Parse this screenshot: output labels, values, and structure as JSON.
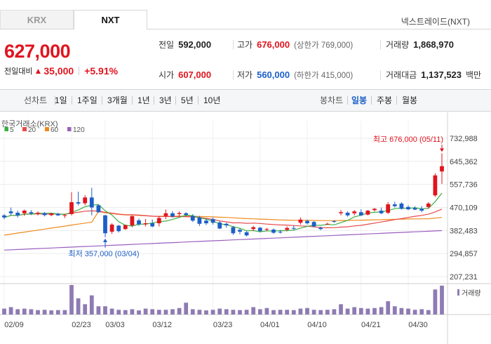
{
  "tabs": [
    {
      "label": "KRX",
      "active": false
    },
    {
      "label": "NXT",
      "active": true
    }
  ],
  "market_name": "넥스트레이드(NXT)",
  "price": "627,000",
  "change": {
    "label": "전일대비",
    "amount": "35,000",
    "percent": "+5.91%"
  },
  "stats": {
    "prev_close": {
      "label": "전일",
      "value": "592,000"
    },
    "high": {
      "label": "고가",
      "value": "676,000",
      "sub": "(상한가 769,000)"
    },
    "volume": {
      "label": "거래량",
      "value": "1,868,970"
    },
    "open": {
      "label": "시가",
      "value": "607,000"
    },
    "low": {
      "label": "저가",
      "value": "560,000",
      "sub": "(하한가 415,000)"
    },
    "amount": {
      "label": "거래대금",
      "value": "1,137,523",
      "unit": "백만"
    }
  },
  "toolbar": {
    "line_label": "선차트",
    "line_periods": [
      "1일",
      "1주일",
      "3개월",
      "1년",
      "3년",
      "5년",
      "10년"
    ],
    "candle_label": "봉차트",
    "candle_periods": [
      "일봉",
      "주봉",
      "월봉"
    ],
    "candle_active": "일봉"
  },
  "colors": {
    "up": "#e0141e",
    "down": "#1c5fc8",
    "ma5": "#3cb043",
    "ma20": "#e84a4a",
    "ma60": "#f08a1c",
    "ma120": "#9b5fc0",
    "volume": "#8e7bb3"
  },
  "chart_data": {
    "type": "candlestick",
    "source_label": "한국거래소(KRX)",
    "legend": [
      "5",
      "20",
      "60",
      "120"
    ],
    "y_ticks": [
      "732,988",
      "645,362",
      "557,736",
      "470,109",
      "382,483",
      "294,857",
      "207,231"
    ],
    "y_tick_values": [
      732988,
      645362,
      557736,
      470109,
      382483,
      294857,
      207231
    ],
    "x_ticks": [
      {
        "label": "02/09",
        "index": 0
      },
      {
        "label": "02/23",
        "index": 10
      },
      {
        "label": "03/03",
        "index": 15
      },
      {
        "label": "03/12",
        "index": 22
      },
      {
        "label": "03/23",
        "index": 31
      },
      {
        "label": "04/01",
        "index": 38
      },
      {
        "label": "04/10",
        "index": 45
      },
      {
        "label": "04/21",
        "index": 53
      },
      {
        "label": "04/30",
        "index": 60
      }
    ],
    "high_annotation": "최고 676,000 (05/11)",
    "low_annotation": "최저 357,000 (03/04)",
    "volume_label": "거래량",
    "candles": [
      [
        440000,
        445000,
        425000,
        432000
      ],
      [
        455000,
        470000,
        440000,
        448000
      ],
      [
        450000,
        458000,
        432000,
        440000
      ],
      [
        448000,
        462000,
        438000,
        458000
      ],
      [
        452000,
        460000,
        441000,
        447000
      ],
      [
        447000,
        455000,
        440000,
        450000
      ],
      [
        449000,
        453000,
        436000,
        441000
      ],
      [
        441000,
        450000,
        437000,
        447000
      ],
      [
        446000,
        450000,
        438000,
        440000
      ],
      [
        441000,
        446000,
        430000,
        441000
      ],
      [
        445000,
        528000,
        440000,
        490000
      ],
      [
        490000,
        530000,
        478000,
        485000
      ],
      [
        486000,
        517000,
        478000,
        508000
      ],
      [
        508000,
        545000,
        440000,
        470000
      ],
      [
        478000,
        480000,
        450000,
        452000
      ],
      [
        440000,
        442000,
        357000,
        372000
      ],
      [
        378000,
        410000,
        370000,
        405000
      ],
      [
        401000,
        404000,
        375000,
        380000
      ],
      [
        388000,
        405000,
        385000,
        403000
      ],
      [
        402000,
        440000,
        395000,
        437000
      ],
      [
        421000,
        428000,
        400000,
        406000
      ],
      [
        406000,
        426000,
        398000,
        410000
      ],
      [
        410000,
        424000,
        395000,
        398000
      ],
      [
        410000,
        436000,
        398000,
        430000
      ],
      [
        438000,
        462000,
        426000,
        448000
      ],
      [
        448000,
        456000,
        431000,
        436000
      ],
      [
        445000,
        455000,
        435000,
        449000
      ],
      [
        448000,
        452000,
        436000,
        442000
      ],
      [
        438000,
        445000,
        415000,
        420000
      ],
      [
        432000,
        438000,
        400000,
        408000
      ],
      [
        420000,
        428000,
        403000,
        410000
      ],
      [
        426000,
        432000,
        405000,
        412000
      ],
      [
        413000,
        418000,
        388000,
        390000
      ],
      [
        408000,
        412000,
        393000,
        402000
      ],
      [
        395000,
        400000,
        366000,
        372000
      ],
      [
        385000,
        392000,
        368000,
        378000
      ],
      [
        376000,
        380000,
        360000,
        364000
      ],
      [
        388000,
        400000,
        380000,
        395000
      ],
      [
        393000,
        396000,
        376000,
        380000
      ],
      [
        386000,
        392000,
        380000,
        388000
      ],
      [
        386000,
        390000,
        370000,
        374000
      ],
      [
        378000,
        384000,
        371000,
        375000
      ],
      [
        385000,
        398000,
        380000,
        392000
      ],
      [
        392000,
        402000,
        384000,
        390000
      ],
      [
        412000,
        432000,
        405000,
        424000
      ],
      [
        419000,
        424000,
        405000,
        410000
      ],
      [
        415000,
        418000,
        395000,
        398000
      ],
      [
        393000,
        397000,
        384000,
        388000
      ],
      [
        408000,
        412000,
        404000,
        408000
      ],
      [
        418000,
        422000,
        412000,
        416000
      ],
      [
        448000,
        460000,
        440000,
        452000
      ],
      [
        450000,
        455000,
        435000,
        440000
      ],
      [
        448000,
        460000,
        440000,
        455000
      ],
      [
        452000,
        463000,
        438000,
        440000
      ],
      [
        443000,
        460000,
        440000,
        458000
      ],
      [
        460000,
        468000,
        455000,
        465000
      ],
      [
        458000,
        470000,
        445000,
        448000
      ],
      [
        450000,
        490000,
        445000,
        482000
      ],
      [
        482000,
        492000,
        470000,
        475000
      ],
      [
        485000,
        490000,
        462000,
        465000
      ],
      [
        472000,
        478000,
        460000,
        463000
      ],
      [
        468000,
        475000,
        460000,
        462000
      ],
      [
        465000,
        475000,
        452000,
        458000
      ],
      [
        472000,
        490000,
        465000,
        485000
      ],
      [
        516000,
        600000,
        510000,
        592000
      ],
      [
        607000,
        676000,
        560000,
        627000
      ]
    ],
    "volumes": [
      0.2,
      0.25,
      0.18,
      0.2,
      0.18,
      0.15,
      0.16,
      0.14,
      0.15,
      0.15,
      1.0,
      0.55,
      0.35,
      0.65,
      0.28,
      0.28,
      0.2,
      0.16,
      0.15,
      0.18,
      0.14,
      0.2,
      0.18,
      0.16,
      0.16,
      0.18,
      0.22,
      0.4,
      0.18,
      0.16,
      0.14,
      0.16,
      0.2,
      0.18,
      0.16,
      0.15,
      0.16,
      0.25,
      0.18,
      0.22,
      0.15,
      0.16,
      0.16,
      0.15,
      0.2,
      0.22,
      0.16,
      0.15,
      0.16,
      0.18,
      0.35,
      0.2,
      0.25,
      0.22,
      0.2,
      0.22,
      0.25,
      0.45,
      0.28,
      0.22,
      0.2,
      0.16,
      0.18,
      0.15,
      0.85,
      0.98
    ]
  }
}
